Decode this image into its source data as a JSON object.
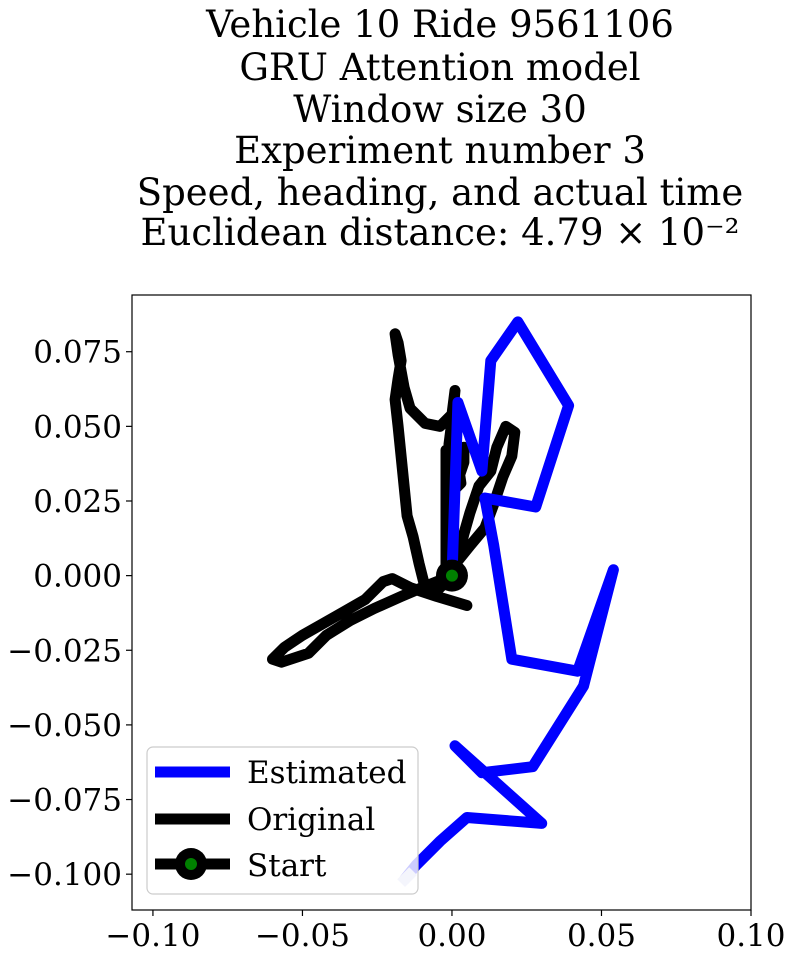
{
  "chart_data": {
    "type": "line",
    "title_lines": [
      "Vehicle 10 Ride 9561106",
      "GRU Attention model",
      "Window size 30",
      "Experiment number 3",
      "Speed, heading, and actual time",
      "Euclidean distance: 4.79 × 10⁻²"
    ],
    "xlim": [
      -0.107,
      0.1
    ],
    "ylim": [
      -0.112,
      0.094
    ],
    "xticks": [
      -0.1,
      -0.05,
      0.0,
      0.05,
      0.1
    ],
    "xtick_labels": [
      "−0.10",
      "−0.05",
      "0.00",
      "0.05",
      "0.10"
    ],
    "yticks": [
      0.075,
      0.05,
      0.025,
      0.0,
      -0.025,
      -0.05,
      -0.075,
      -0.1
    ],
    "ytick_labels": [
      "0.075",
      "0.050",
      "0.025",
      "0.000",
      "−0.025",
      "−0.050",
      "−0.075",
      "−0.100"
    ],
    "legend_position": "lower-left",
    "series": [
      {
        "name": "Estimated",
        "color": "#0000ff",
        "points": [
          [
            -0.016,
            -0.102
          ],
          [
            -0.012,
            -0.097
          ],
          [
            -0.004,
            -0.089
          ],
          [
            0.005,
            -0.081
          ],
          [
            0.03,
            -0.083
          ],
          [
            0.001,
            -0.057
          ],
          [
            0.01,
            -0.066
          ],
          [
            0.027,
            -0.064
          ],
          [
            0.044,
            -0.037
          ],
          [
            0.054,
            0.002
          ],
          [
            0.042,
            -0.032
          ],
          [
            0.02,
            -0.028
          ],
          [
            0.014,
            0.01
          ],
          [
            0.011,
            0.026
          ],
          [
            0.028,
            0.023
          ],
          [
            0.039,
            0.057
          ],
          [
            0.022,
            0.085
          ],
          [
            0.013,
            0.072
          ],
          [
            0.01,
            0.035
          ],
          [
            0.002,
            0.058
          ],
          [
            0.0,
            0.0
          ]
        ]
      },
      {
        "name": "Original",
        "color": "#000000",
        "points": [
          [
            0.005,
            -0.01
          ],
          [
            -0.005,
            -0.007
          ],
          [
            -0.014,
            -0.004
          ],
          [
            -0.02,
            -0.001
          ],
          [
            -0.023,
            -0.002
          ],
          [
            -0.029,
            -0.008
          ],
          [
            -0.036,
            -0.012
          ],
          [
            -0.043,
            -0.016
          ],
          [
            -0.05,
            -0.02
          ],
          [
            -0.056,
            -0.024
          ],
          [
            -0.06,
            -0.028
          ],
          [
            -0.057,
            -0.029
          ],
          [
            -0.048,
            -0.026
          ],
          [
            -0.042,
            -0.02
          ],
          [
            -0.034,
            -0.015
          ],
          [
            -0.026,
            -0.011
          ],
          [
            -0.017,
            -0.007
          ],
          [
            -0.01,
            -0.004
          ],
          [
            -0.005,
            -0.002
          ],
          [
            0.0,
            0.0
          ],
          [
            -0.004,
            -0.004
          ],
          [
            -0.009,
            -0.004
          ],
          [
            -0.011,
            0.004
          ],
          [
            -0.013,
            0.013
          ],
          [
            -0.015,
            0.02
          ],
          [
            -0.016,
            0.03
          ],
          [
            -0.017,
            0.04
          ],
          [
            -0.018,
            0.05
          ],
          [
            -0.019,
            0.059
          ],
          [
            -0.018,
            0.066
          ],
          [
            -0.017,
            0.072
          ],
          [
            -0.018,
            0.078
          ],
          [
            -0.019,
            0.081
          ],
          [
            -0.018,
            0.074
          ],
          [
            -0.016,
            0.063
          ],
          [
            -0.014,
            0.056
          ],
          [
            -0.009,
            0.051
          ],
          [
            -0.004,
            0.05
          ],
          [
            0.0,
            0.054
          ],
          [
            0.001,
            0.062
          ],
          [
            0.0,
            0.052
          ],
          [
            -0.001,
            0.044
          ],
          [
            0.002,
            0.04
          ],
          [
            0.004,
            0.043
          ],
          [
            0.004,
            0.038
          ],
          [
            0.002,
            0.032
          ],
          [
            -0.001,
            0.03
          ],
          [
            0.0,
            0.028
          ],
          [
            0.003,
            0.031
          ],
          [
            0.002,
            0.038
          ],
          [
            -0.002,
            0.042
          ],
          [
            -0.002,
            0.035
          ],
          [
            -0.002,
            0.02
          ],
          [
            -0.002,
            0.003
          ],
          [
            0.002,
            0.005
          ],
          [
            0.006,
            0.01
          ],
          [
            0.011,
            0.016
          ],
          [
            0.014,
            0.024
          ],
          [
            0.017,
            0.033
          ],
          [
            0.02,
            0.04
          ],
          [
            0.021,
            0.048
          ],
          [
            0.018,
            0.05
          ],
          [
            0.015,
            0.043
          ],
          [
            0.013,
            0.035
          ],
          [
            0.009,
            0.03
          ],
          [
            0.006,
            0.021
          ],
          [
            0.004,
            0.014
          ],
          [
            0.002,
            0.006
          ],
          [
            0.0,
            0.0
          ]
        ]
      }
    ],
    "start": {
      "label": "Start",
      "x": 0.0,
      "y": 0.0,
      "marker_color": "#008000"
    }
  }
}
